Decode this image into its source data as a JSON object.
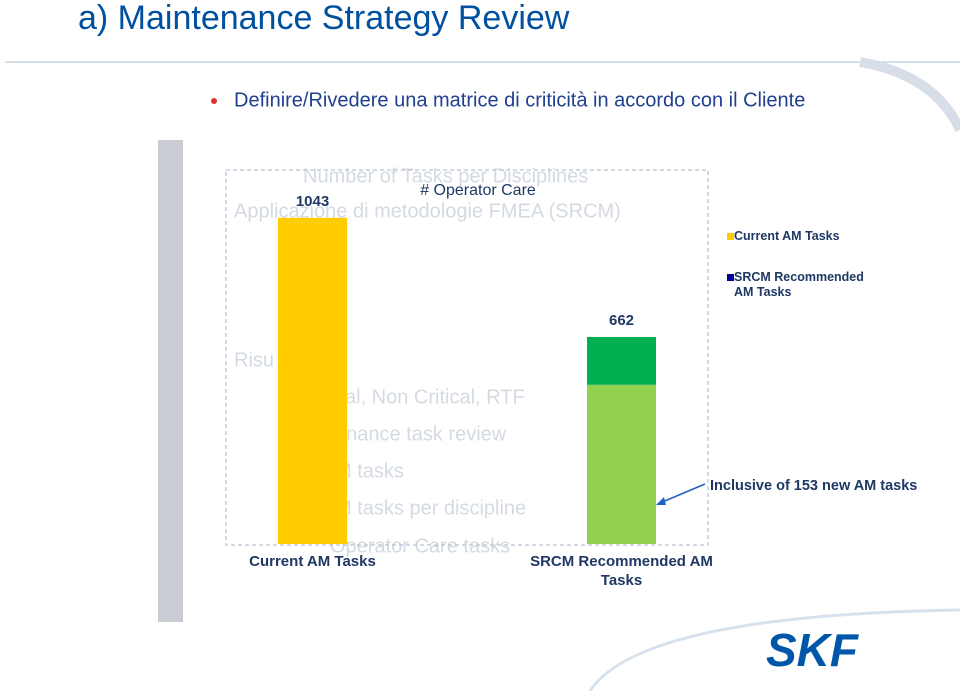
{
  "header": {
    "title": "a) Maintenance Strategy Review",
    "bullet": "Definire/Rivedere una matrice di criticità in accordo con il Cliente"
  },
  "background_text": [
    "Number of Tasks per Disciplines",
    "Applicazione di metodologie FMEA (SRCM)",
    "Risu",
    "cal, Non Critical, RTF",
    "enance task review",
    "M tasks",
    "M tasks per discipline",
    "Operator Care tasks"
  ],
  "chart_data": {
    "type": "bar",
    "stacked": true,
    "title": "# Operator Care",
    "categories": [
      "Current AM Tasks",
      "SRCM Recommended AM Tasks"
    ],
    "series": [
      {
        "name": "Current AM Tasks",
        "color": "#ffcc00",
        "values": [
          1043,
          null
        ]
      },
      {
        "name": "SRCM Recommended AM Tasks",
        "color": "#000099",
        "bar_color": "#92d050",
        "values": [
          null,
          509
        ]
      },
      {
        "color": "#00b050",
        "values": [
          null,
          153
        ]
      }
    ],
    "totals": [
      1043,
      662
    ],
    "annotation": "Inclusive of 153 new AM tasks",
    "ylim": [
      0,
      1100
    ],
    "legend": "right"
  },
  "logo": "SKF"
}
